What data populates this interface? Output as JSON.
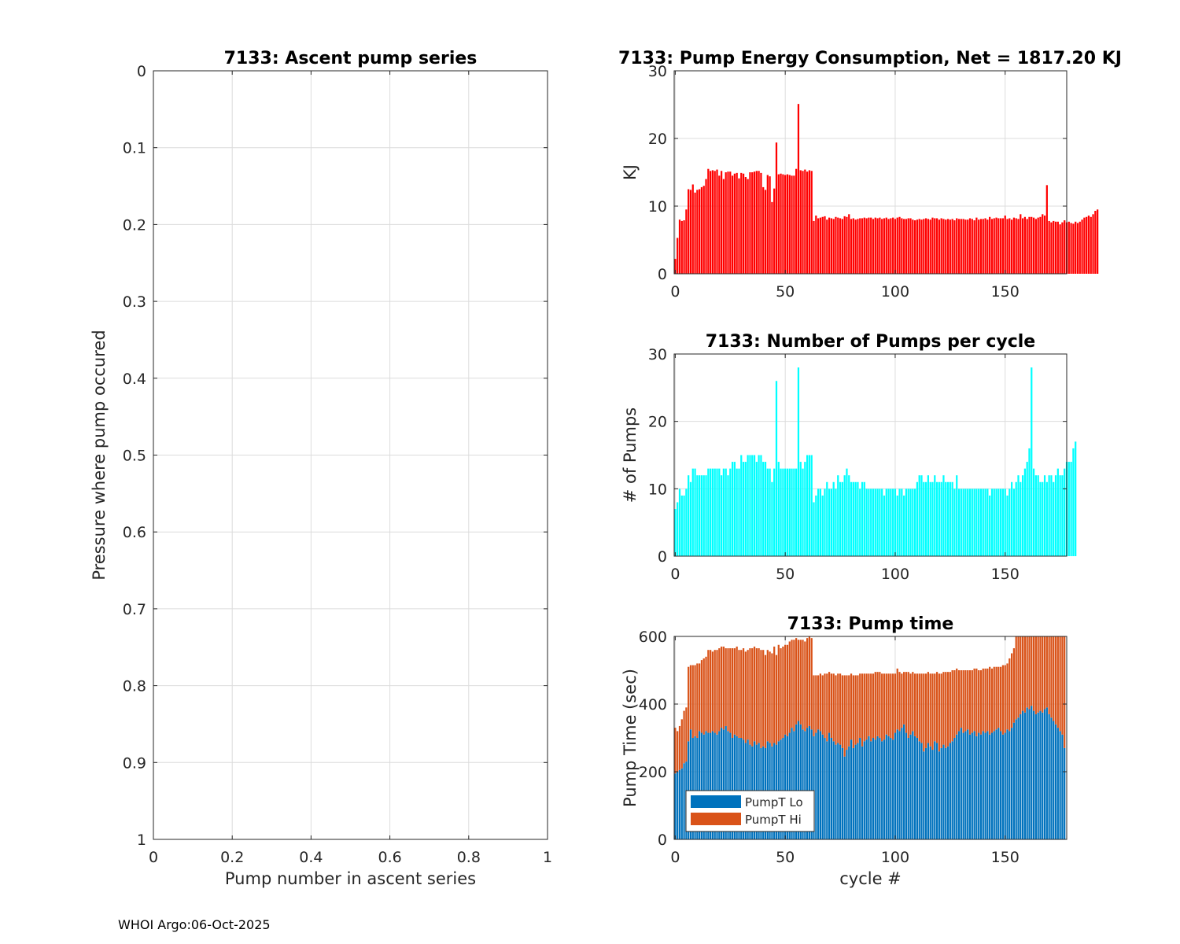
{
  "footer": "WHOI Argo:06-Oct-2025",
  "chart_data": [
    {
      "type": "scatter",
      "title": "7133: Ascent pump series",
      "xlabel": "Pump number in ascent series",
      "ylabel": "Pressure where pump occured",
      "xlim": [
        0,
        1
      ],
      "ylim": [
        0,
        1
      ],
      "y_reversed": true,
      "xticks": [
        "0",
        "0.2",
        "0.4",
        "0.6",
        "0.8",
        "1"
      ],
      "yticks": [
        "0",
        "0.1",
        "0.2",
        "0.3",
        "0.4",
        "0.5",
        "0.6",
        "0.7",
        "0.8",
        "0.9",
        "1"
      ],
      "grid": true,
      "points": []
    },
    {
      "type": "bar",
      "title": "7133: Pump Energy Consumption,  Net = 1817.20 KJ",
      "xlabel": "",
      "ylabel": "KJ",
      "xlim": [
        -0.5,
        178
      ],
      "ylim": [
        0,
        30
      ],
      "xticks": [
        "0",
        "50",
        "100",
        "150"
      ],
      "yticks": [
        "0",
        "10",
        "20",
        "30"
      ],
      "color": "#ff0000",
      "grid": true,
      "values": [
        2.2,
        5.3,
        8.0,
        7.8,
        7.9,
        9.5,
        12.5,
        12.4,
        13.2,
        12.0,
        12.4,
        12.5,
        12.8,
        13.0,
        14.0,
        15.5,
        15.2,
        15.3,
        15.2,
        15.4,
        14.5,
        15.2,
        14.0,
        15.0,
        15.1,
        15.1,
        14.5,
        14.8,
        14.9,
        14.1,
        14.9,
        14.8,
        14.3,
        14.0,
        15.0,
        15.0,
        15.1,
        15.2,
        15.2,
        14.9,
        12.8,
        12.4,
        14.6,
        14.4,
        10.6,
        12.6,
        19.4,
        14.7,
        14.8,
        14.7,
        14.6,
        14.7,
        14.6,
        14.5,
        14.5,
        15.5,
        25.1,
        15.3,
        15.2,
        15.4,
        15.1,
        15.3,
        15.2,
        7.8,
        8.6,
        8.2,
        8.3,
        8.4,
        8.5,
        8.0,
        8.3,
        8.2,
        8.1,
        8.4,
        8.3,
        8.2,
        8.1,
        8.5,
        8.4,
        8.8,
        8.1,
        8.2,
        8.0,
        8.1,
        8.2,
        8.2,
        8.3,
        8.2,
        8.3,
        8.3,
        8.1,
        8.3,
        8.2,
        8.3,
        8.1,
        8.2,
        8.3,
        8.1,
        8.2,
        8.3,
        8.1,
        8.3,
        8.4,
        8.2,
        8.1,
        8.1,
        8.2,
        8.2,
        8.0,
        7.9,
        8.0,
        8.1,
        8.0,
        8.1,
        8.2,
        8.1,
        8.0,
        8.3,
        8.2,
        8.2,
        8.0,
        8.2,
        8.1,
        8.0,
        8.1,
        8.0,
        8.1,
        7.9,
        8.2,
        8.1,
        8.1,
        8.1,
        8.0,
        8.0,
        8.2,
        8.1,
        7.9,
        8.3,
        8.0,
        8.1,
        8.1,
        8.2,
        8.0,
        8.4,
        8.1,
        8.2,
        8.3,
        8.2,
        8.2,
        8.2,
        8.6,
        8.1,
        8.2,
        8.0,
        8.3,
        8.2,
        8.1,
        8.8,
        8.2,
        8.4,
        8.1,
        8.4,
        8.4,
        8.3,
        8.1,
        8.3,
        8.4,
        8.8,
        8.6,
        13.1,
        7.8,
        7.6,
        7.8,
        7.7,
        7.7,
        7.3,
        7.6,
        7.9,
        7.6,
        7.7,
        7.5,
        7.4,
        7.7,
        7.5,
        7.7,
        8.0,
        8.3,
        8.4,
        8.6,
        8.4,
        8.8,
        9.3,
        9.5
      ]
    },
    {
      "type": "bar",
      "title": "7133: Number of Pumps per cycle",
      "xlabel": "",
      "ylabel": "# of Pumps",
      "xlim": [
        -0.5,
        178
      ],
      "ylim": [
        0,
        30
      ],
      "xticks": [
        "0",
        "50",
        "100",
        "150"
      ],
      "yticks": [
        "0",
        "10",
        "20",
        "30"
      ],
      "color": "#00ffff",
      "grid": true,
      "values": [
        7,
        8,
        10,
        9,
        9,
        10,
        12,
        11,
        13,
        13,
        12,
        12,
        12,
        12,
        12,
        13,
        13,
        13,
        13,
        13,
        13,
        12,
        13,
        13,
        12,
        13,
        14,
        14,
        13,
        13,
        15,
        14,
        14,
        15,
        15,
        15,
        15,
        14,
        15,
        15,
        14,
        14,
        13,
        13,
        11,
        13,
        26,
        14,
        13,
        13,
        13,
        13,
        13,
        13,
        13,
        13,
        28,
        14,
        13,
        14,
        15,
        15,
        15,
        8,
        9,
        10,
        10,
        9,
        10,
        11,
        10,
        10,
        11,
        10,
        12,
        11,
        11,
        12,
        13,
        12,
        11,
        11,
        11,
        11,
        10,
        11,
        11,
        10,
        10,
        10,
        10,
        10,
        10,
        10,
        10,
        9,
        10,
        10,
        10,
        10,
        10,
        9,
        10,
        10,
        9,
        10,
        10,
        10,
        10,
        10,
        11,
        12,
        12,
        11,
        11,
        12,
        11,
        11,
        12,
        11,
        11,
        11,
        12,
        11,
        11,
        11,
        11,
        10,
        12,
        10,
        10,
        10,
        10,
        10,
        10,
        10,
        10,
        10,
        10,
        10,
        10,
        10,
        10,
        9,
        10,
        10,
        10,
        10,
        10,
        10,
        10,
        9,
        10,
        11,
        10,
        11,
        12,
        11,
        12,
        13,
        14,
        16,
        28,
        13,
        12,
        12,
        11,
        11,
        12,
        11,
        12,
        12,
        11,
        12,
        13,
        12,
        12,
        13,
        14,
        14,
        14,
        16,
        17
      ]
    },
    {
      "type": "bar",
      "stacked": true,
      "title": "7133: Pump time",
      "xlabel": "cycle #",
      "ylabel": "Pump Time (sec)",
      "xlim": [
        -0.5,
        178
      ],
      "ylim": [
        0,
        600
      ],
      "xticks": [
        "0",
        "50",
        "100",
        "150"
      ],
      "yticks": [
        "0",
        "200",
        "400",
        "600"
      ],
      "grid": true,
      "legend": "bottom-left",
      "series": [
        {
          "name": "PumpT Lo",
          "color": "#0072bd",
          "values": [
            195,
            200,
            205,
            210,
            225,
            230,
            290,
            325,
            300,
            305,
            300,
            320,
            315,
            310,
            320,
            315,
            315,
            320,
            315,
            310,
            320,
            330,
            325,
            335,
            320,
            315,
            300,
            310,
            305,
            300,
            300,
            295,
            285,
            295,
            280,
            275,
            290,
            280,
            285,
            270,
            275,
            270,
            290,
            285,
            275,
            285,
            280,
            290,
            295,
            300,
            310,
            305,
            315,
            330,
            320,
            340,
            350,
            340,
            325,
            320,
            330,
            335,
            325,
            305,
            315,
            325,
            320,
            310,
            300,
            290,
            315,
            300,
            290,
            280,
            285,
            280,
            270,
            245,
            265,
            275,
            295,
            270,
            280,
            285,
            300,
            275,
            290,
            295,
            305,
            290,
            300,
            295,
            305,
            300,
            290,
            295,
            310,
            305,
            300,
            295,
            315,
            325,
            320,
            330,
            340,
            315,
            300,
            310,
            320,
            305,
            300,
            290,
            285,
            260,
            270,
            285,
            275,
            265,
            290,
            285,
            260,
            270,
            280,
            270,
            275,
            285,
            290,
            300,
            310,
            320,
            330,
            315,
            320,
            325,
            310,
            315,
            320,
            305,
            315,
            310,
            320,
            315,
            320,
            310,
            315,
            320,
            325,
            330,
            320,
            310,
            315,
            325,
            320,
            330,
            345,
            355,
            360,
            370,
            380,
            375,
            390,
            385,
            395,
            380,
            370,
            375,
            380,
            375,
            385,
            390,
            370,
            360,
            350,
            340,
            330,
            320,
            310,
            270
          ]
        },
        {
          "name": "PumpT Hi",
          "color": "#d95319",
          "values": [
            135,
            120,
            130,
            145,
            155,
            160,
            220,
            190,
            215,
            210,
            220,
            200,
            215,
            225,
            220,
            245,
            245,
            235,
            245,
            250,
            245,
            240,
            245,
            230,
            245,
            250,
            265,
            255,
            265,
            260,
            260,
            270,
            270,
            265,
            285,
            290,
            280,
            285,
            280,
            290,
            285,
            275,
            270,
            270,
            275,
            285,
            265,
            285,
            270,
            270,
            265,
            270,
            270,
            260,
            270,
            255,
            240,
            250,
            265,
            265,
            265,
            265,
            270,
            180,
            170,
            160,
            170,
            175,
            190,
            200,
            180,
            190,
            200,
            205,
            205,
            210,
            215,
            240,
            220,
            210,
            195,
            215,
            205,
            200,
            190,
            215,
            200,
            195,
            185,
            200,
            190,
            200,
            190,
            195,
            200,
            195,
            180,
            185,
            190,
            195,
            175,
            180,
            175,
            160,
            155,
            180,
            195,
            180,
            175,
            185,
            190,
            200,
            205,
            230,
            220,
            210,
            215,
            225,
            200,
            210,
            230,
            220,
            215,
            225,
            220,
            210,
            210,
            200,
            195,
            180,
            170,
            185,
            180,
            175,
            190,
            185,
            185,
            200,
            185,
            190,
            185,
            190,
            185,
            200,
            190,
            190,
            185,
            180,
            190,
            205,
            200,
            195,
            215,
            220,
            220,
            245,
            240,
            230,
            220,
            225,
            210,
            215,
            205,
            220,
            230,
            225,
            220,
            225,
            215,
            210,
            230,
            240,
            250,
            260,
            270,
            280,
            290,
            330
          ]
        }
      ]
    }
  ]
}
